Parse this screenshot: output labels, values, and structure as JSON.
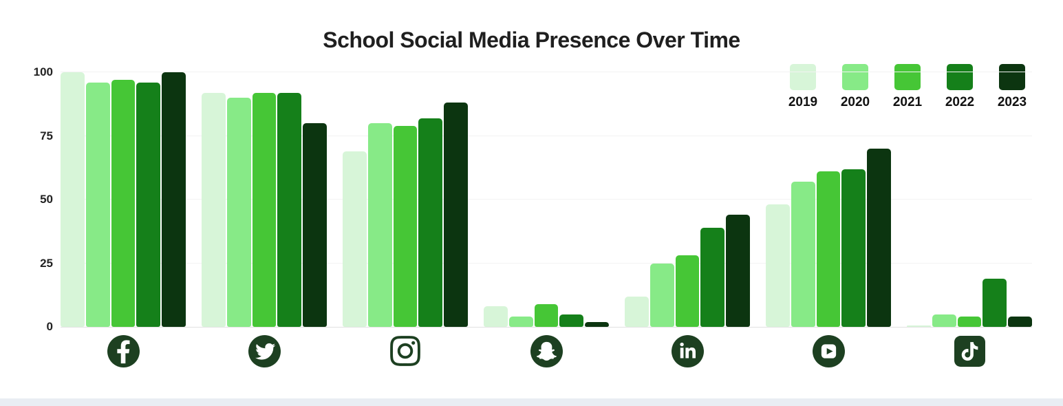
{
  "title": "School Social Media Presence Over Time",
  "colors": {
    "icon_green": "#1d4021",
    "title_text": "#1f1f1f",
    "axis_text": "#222222",
    "gridline": "#f2f2f2",
    "baseline": "#e2e2e2",
    "background": "#ffffff",
    "bottom_strip": "#e9edf3"
  },
  "chart_data": {
    "type": "bar",
    "title": "School Social Media Presence Over Time",
    "categories": [
      "Facebook",
      "Twitter",
      "Instagram",
      "Snapchat",
      "LinkedIn",
      "YouTube",
      "TikTok"
    ],
    "category_icons": [
      "facebook-icon",
      "twitter-icon",
      "instagram-icon",
      "snapchat-icon",
      "linkedin-icon",
      "youtube-icon",
      "tiktok-icon"
    ],
    "series": [
      {
        "name": "2019",
        "color": "#d7f5d8",
        "values": [
          100,
          92,
          69,
          8,
          12,
          48,
          0.5
        ]
      },
      {
        "name": "2020",
        "color": "#87ea87",
        "values": [
          96,
          90,
          80,
          4,
          25,
          57,
          5
        ]
      },
      {
        "name": "2021",
        "color": "#46c636",
        "values": [
          97,
          92,
          79,
          9,
          28,
          61,
          4
        ]
      },
      {
        "name": "2022",
        "color": "#15801a",
        "values": [
          96,
          92,
          82,
          5,
          39,
          62,
          19
        ]
      },
      {
        "name": "2023",
        "color": "#0c3510",
        "values": [
          100,
          80,
          88,
          2,
          44,
          70,
          4
        ]
      }
    ],
    "y_ticks": [
      0,
      25,
      50,
      75,
      100
    ],
    "y_tick_labels": [
      "0",
      "25",
      "50",
      "75",
      "100"
    ],
    "ylim": [
      0,
      100
    ],
    "xlabel": "",
    "ylabel": "",
    "grid": "horizontal",
    "legend_position": "top-right",
    "legend_entries": [
      "2019",
      "2020",
      "2021",
      "2022",
      "2023"
    ]
  }
}
